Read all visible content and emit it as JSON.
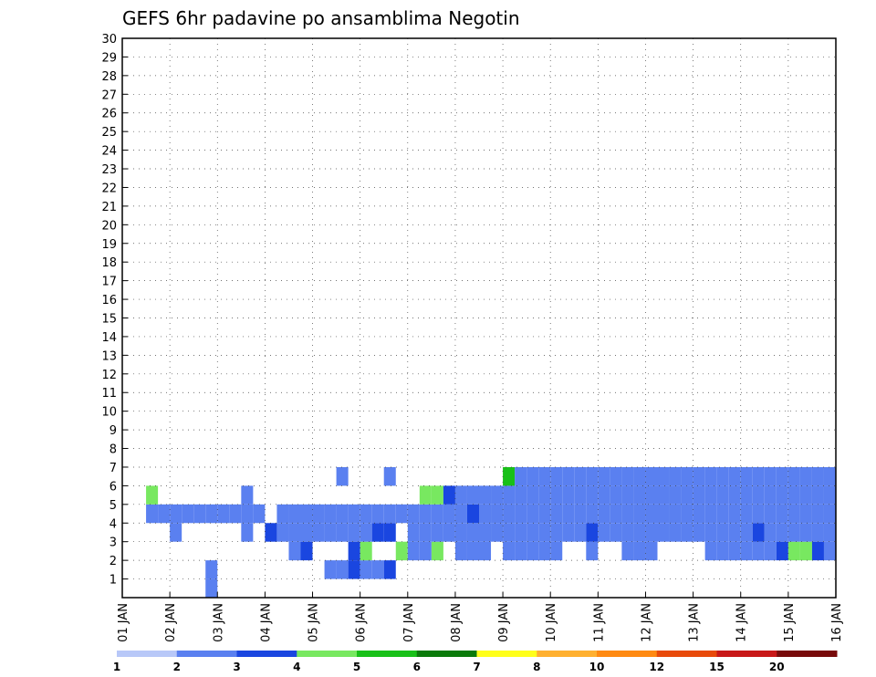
{
  "chart_data": {
    "type": "heatmap",
    "title": "GEFS 6hr padavine po ansamblima Negotin",
    "xlabel": "",
    "ylabel": "",
    "x_tick_labels": [
      "01 JAN",
      "02 JAN",
      "03 JAN",
      "04 JAN",
      "05 JAN",
      "06 JAN",
      "07 JAN",
      "08 JAN",
      "09 JAN",
      "10 JAN",
      "11 JAN",
      "12 JAN",
      "13 JAN",
      "14 JAN",
      "15 JAN",
      "16 JAN"
    ],
    "y_tick_labels": [
      "1",
      "2",
      "3",
      "4",
      "5",
      "6",
      "7",
      "8",
      "9",
      "10",
      "11",
      "12",
      "13",
      "14",
      "15",
      "16",
      "17",
      "18",
      "19",
      "20",
      "21",
      "22",
      "23",
      "24",
      "25",
      "26",
      "27",
      "28",
      "29",
      "30"
    ],
    "xlim": [
      0,
      60
    ],
    "ylim": [
      0,
      30
    ],
    "grid": true,
    "colorbar": {
      "levels": [
        "1",
        "2",
        "3",
        "4",
        "5",
        "6",
        "7",
        "8",
        "10",
        "12",
        "15",
        "20"
      ],
      "colors": [
        "#b8c8f8",
        "#5a80f0",
        "#1a46e0",
        "#78e860",
        "#18c018",
        "#0a7a0a",
        "#ffff1a",
        "#ffb030",
        "#ff8a12",
        "#e84a0a",
        "#c81818",
        "#780a0a"
      ]
    },
    "x_unit": "6-hour step from 01 JAN 00Z",
    "y_unit": "ensemble member",
    "cells": [
      [
        0,
        7,
        1
      ],
      [
        1,
        7,
        1
      ],
      [
        1,
        17,
        1
      ],
      [
        1,
        18,
        1
      ],
      [
        1,
        19,
        2
      ],
      [
        1,
        20,
        1
      ],
      [
        1,
        21,
        1
      ],
      [
        1,
        22,
        2
      ],
      [
        2,
        14,
        1
      ],
      [
        2,
        15,
        2
      ],
      [
        2,
        19,
        2
      ],
      [
        2,
        20,
        3
      ],
      [
        2,
        23,
        3
      ],
      [
        2,
        24,
        1
      ],
      [
        2,
        25,
        1
      ],
      [
        2,
        26,
        3
      ],
      [
        2,
        28,
        1
      ],
      [
        2,
        29,
        1
      ],
      [
        2,
        30,
        1
      ],
      [
        2,
        32,
        1
      ],
      [
        2,
        33,
        1
      ],
      [
        2,
        34,
        1
      ],
      [
        2,
        35,
        1
      ],
      [
        2,
        36,
        1
      ],
      [
        2,
        39,
        1
      ],
      [
        2,
        42,
        1
      ],
      [
        2,
        43,
        1
      ],
      [
        2,
        44,
        1
      ],
      [
        2,
        49,
        1
      ],
      [
        2,
        50,
        1
      ],
      [
        2,
        51,
        1
      ],
      [
        2,
        52,
        1
      ],
      [
        2,
        53,
        1
      ],
      [
        2,
        54,
        1
      ],
      [
        2,
        55,
        2
      ],
      [
        2,
        56,
        3
      ],
      [
        2,
        57,
        3
      ],
      [
        2,
        58,
        2
      ],
      [
        2,
        59,
        1
      ],
      [
        3,
        4,
        1
      ],
      [
        3,
        10,
        1
      ],
      [
        3,
        12,
        2
      ],
      [
        3,
        13,
        1
      ],
      [
        3,
        14,
        1
      ],
      [
        3,
        15,
        1
      ],
      [
        3,
        16,
        1
      ],
      [
        3,
        17,
        1
      ],
      [
        3,
        18,
        1
      ],
      [
        3,
        19,
        1
      ],
      [
        3,
        20,
        1
      ],
      [
        3,
        21,
        2
      ],
      [
        3,
        22,
        2
      ],
      [
        3,
        24,
        1
      ],
      [
        3,
        25,
        1
      ],
      [
        3,
        26,
        1
      ],
      [
        3,
        27,
        1
      ],
      [
        3,
        28,
        1
      ],
      [
        3,
        29,
        1
      ],
      [
        3,
        30,
        1
      ],
      [
        3,
        31,
        1
      ],
      [
        3,
        32,
        1
      ],
      [
        3,
        33,
        1
      ],
      [
        3,
        34,
        1
      ],
      [
        3,
        35,
        1
      ],
      [
        3,
        36,
        1
      ],
      [
        3,
        37,
        1
      ],
      [
        3,
        38,
        1
      ],
      [
        3,
        39,
        2
      ],
      [
        3,
        40,
        1
      ],
      [
        3,
        41,
        1
      ],
      [
        3,
        42,
        1
      ],
      [
        3,
        43,
        1
      ],
      [
        3,
        44,
        1
      ],
      [
        3,
        45,
        1
      ],
      [
        3,
        46,
        1
      ],
      [
        3,
        47,
        1
      ],
      [
        3,
        48,
        1
      ],
      [
        3,
        49,
        1
      ],
      [
        3,
        50,
        1
      ],
      [
        3,
        51,
        1
      ],
      [
        3,
        52,
        1
      ],
      [
        3,
        53,
        2
      ],
      [
        3,
        54,
        1
      ],
      [
        3,
        55,
        1
      ],
      [
        3,
        56,
        1
      ],
      [
        3,
        57,
        1
      ],
      [
        3,
        58,
        1
      ],
      [
        3,
        59,
        1
      ],
      [
        4,
        2,
        1
      ],
      [
        4,
        3,
        1
      ],
      [
        4,
        4,
        1
      ],
      [
        4,
        5,
        1
      ],
      [
        4,
        6,
        1
      ],
      [
        4,
        7,
        1
      ],
      [
        4,
        8,
        1
      ],
      [
        4,
        9,
        1
      ],
      [
        4,
        10,
        1
      ],
      [
        4,
        11,
        1
      ],
      [
        4,
        13,
        1
      ],
      [
        4,
        14,
        1
      ],
      [
        4,
        15,
        1
      ],
      [
        4,
        16,
        1
      ],
      [
        4,
        17,
        1
      ],
      [
        4,
        18,
        1
      ],
      [
        4,
        19,
        1
      ],
      [
        4,
        20,
        1
      ],
      [
        4,
        21,
        1
      ],
      [
        4,
        22,
        1
      ],
      [
        4,
        23,
        1
      ],
      [
        4,
        24,
        1
      ],
      [
        4,
        25,
        1
      ],
      [
        4,
        26,
        1
      ],
      [
        4,
        27,
        1
      ],
      [
        4,
        28,
        1
      ],
      [
        4,
        29,
        2
      ],
      [
        4,
        30,
        1
      ],
      [
        4,
        31,
        1
      ],
      [
        4,
        32,
        1
      ],
      [
        4,
        33,
        1
      ],
      [
        4,
        34,
        1
      ],
      [
        4,
        35,
        1
      ],
      [
        4,
        36,
        1
      ],
      [
        4,
        37,
        1
      ],
      [
        4,
        38,
        1
      ],
      [
        4,
        39,
        1
      ],
      [
        4,
        40,
        1
      ],
      [
        4,
        41,
        1
      ],
      [
        4,
        42,
        1
      ],
      [
        4,
        43,
        1
      ],
      [
        4,
        44,
        1
      ],
      [
        4,
        45,
        1
      ],
      [
        4,
        46,
        1
      ],
      [
        4,
        47,
        1
      ],
      [
        4,
        48,
        1
      ],
      [
        4,
        49,
        1
      ],
      [
        4,
        50,
        1
      ],
      [
        4,
        51,
        1
      ],
      [
        4,
        52,
        1
      ],
      [
        4,
        53,
        1
      ],
      [
        4,
        54,
        1
      ],
      [
        4,
        55,
        1
      ],
      [
        4,
        56,
        1
      ],
      [
        4,
        57,
        1
      ],
      [
        4,
        58,
        1
      ],
      [
        4,
        59,
        1
      ],
      [
        5,
        2,
        3
      ],
      [
        5,
        10,
        1
      ],
      [
        5,
        25,
        3
      ],
      [
        5,
        26,
        3
      ],
      [
        5,
        27,
        2
      ],
      [
        5,
        28,
        1
      ],
      [
        5,
        29,
        1
      ],
      [
        5,
        30,
        1
      ],
      [
        5,
        31,
        1
      ],
      [
        5,
        32,
        1
      ],
      [
        5,
        33,
        1
      ],
      [
        5,
        34,
        1
      ],
      [
        5,
        35,
        1
      ],
      [
        5,
        36,
        1
      ],
      [
        5,
        37,
        1
      ],
      [
        5,
        38,
        1
      ],
      [
        5,
        39,
        1
      ],
      [
        5,
        40,
        1
      ],
      [
        5,
        41,
        1
      ],
      [
        5,
        42,
        1
      ],
      [
        5,
        43,
        1
      ],
      [
        5,
        44,
        1
      ],
      [
        5,
        45,
        1
      ],
      [
        5,
        46,
        1
      ],
      [
        5,
        47,
        1
      ],
      [
        5,
        48,
        1
      ],
      [
        5,
        49,
        1
      ],
      [
        5,
        50,
        1
      ],
      [
        5,
        51,
        1
      ],
      [
        5,
        52,
        1
      ],
      [
        5,
        53,
        1
      ],
      [
        5,
        54,
        1
      ],
      [
        5,
        55,
        1
      ],
      [
        5,
        56,
        1
      ],
      [
        5,
        57,
        1
      ],
      [
        5,
        58,
        1
      ],
      [
        5,
        59,
        1
      ],
      [
        6,
        18,
        1
      ],
      [
        6,
        22,
        1
      ],
      [
        6,
        32,
        4
      ],
      [
        6,
        33,
        1
      ],
      [
        6,
        34,
        1
      ],
      [
        6,
        35,
        1
      ],
      [
        6,
        36,
        1
      ],
      [
        6,
        37,
        1
      ],
      [
        6,
        38,
        1
      ],
      [
        6,
        39,
        1
      ],
      [
        6,
        40,
        1
      ],
      [
        6,
        41,
        1
      ],
      [
        6,
        42,
        1
      ],
      [
        6,
        43,
        1
      ],
      [
        6,
        44,
        1
      ],
      [
        6,
        45,
        1
      ],
      [
        6,
        46,
        1
      ],
      [
        6,
        47,
        1
      ],
      [
        6,
        48,
        1
      ],
      [
        6,
        49,
        1
      ],
      [
        6,
        50,
        1
      ],
      [
        6,
        51,
        1
      ],
      [
        6,
        52,
        1
      ],
      [
        6,
        53,
        1
      ],
      [
        6,
        54,
        1
      ],
      [
        6,
        55,
        1
      ],
      [
        6,
        56,
        1
      ],
      [
        6,
        57,
        1
      ],
      [
        6,
        58,
        1
      ],
      [
        6,
        59,
        1
      ]
    ]
  }
}
